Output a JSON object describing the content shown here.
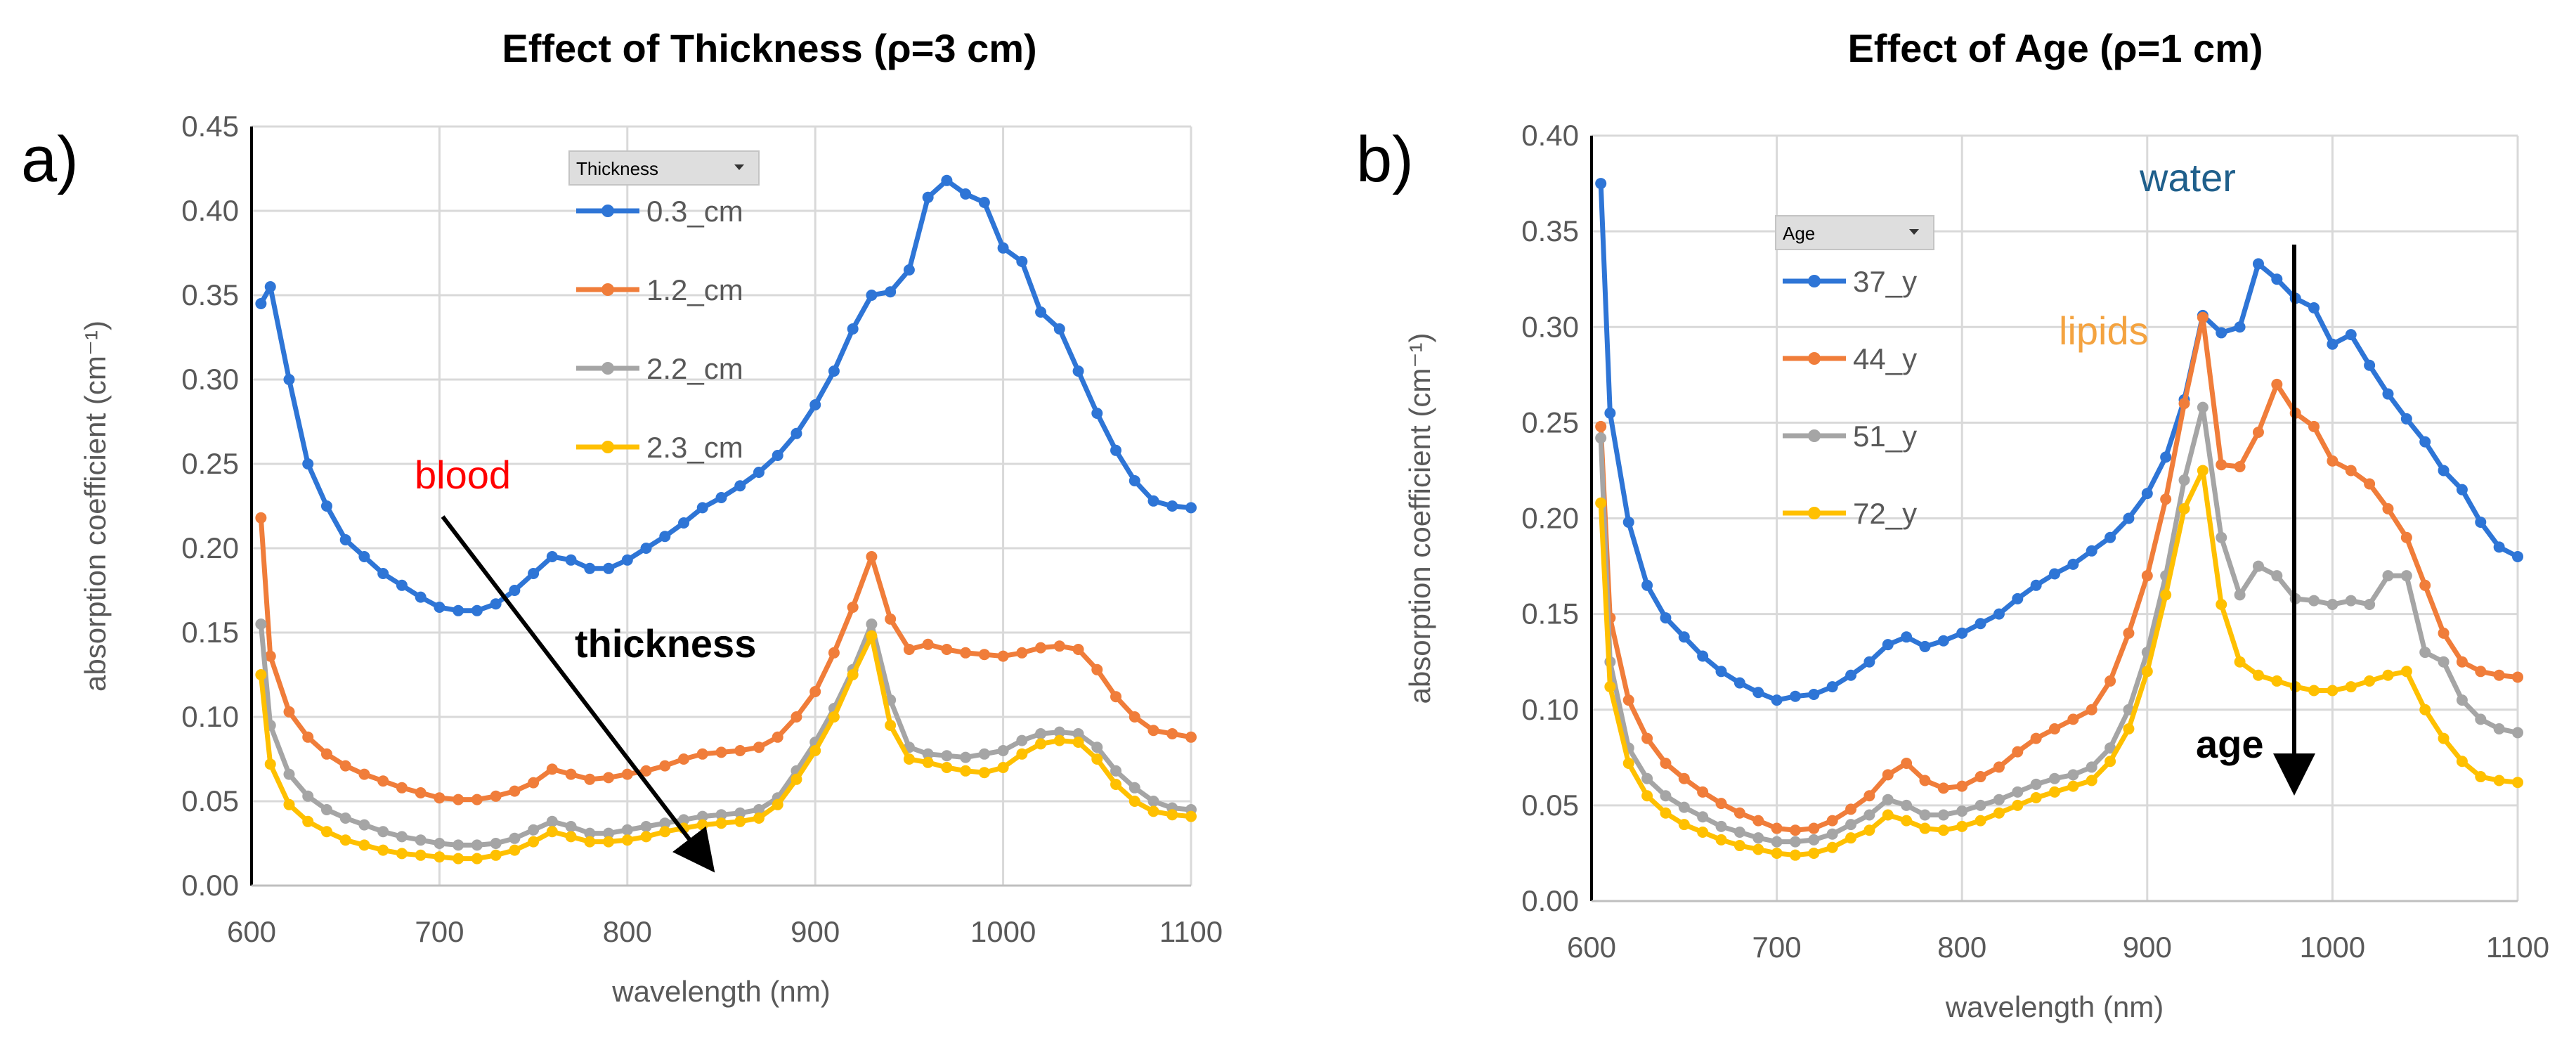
{
  "figure": {
    "panels": [
      {
        "label": "a)",
        "title": "Effect of Thickness (ρ=3 cm)",
        "legend_header": "Thickness"
      },
      {
        "label": "b)",
        "title": "Effect of Age (ρ=1 cm)",
        "legend_header": "Age"
      }
    ],
    "annotations": {
      "blood": "blood",
      "thickness": "thickness",
      "water": "water",
      "lipids": "lipids",
      "age": "age"
    },
    "colors": {
      "blue": "#2e75d6",
      "orange": "#f07d3a",
      "gray": "#a5a5a5",
      "yellow": "#ffc000",
      "blood": "#ff0000",
      "water": "#1f5f8b",
      "lipids": "#f4a340",
      "grid": "#d9d9d9",
      "axis": "#000000"
    }
  },
  "chart_data": [
    {
      "type": "line",
      "title": "Effect of Thickness (ρ=3 cm)",
      "xlabel": "wavelength (nm)",
      "ylabel": "absorption coefficient (cm⁻¹)",
      "xlim": [
        600,
        1100
      ],
      "ylim": [
        0,
        0.45
      ],
      "xticks": [
        600,
        700,
        800,
        900,
        1000,
        1100
      ],
      "yticks": [
        0,
        0.05,
        0.1,
        0.15,
        0.2,
        0.25,
        0.3,
        0.35,
        0.4,
        0.45
      ],
      "tick_labels_x": [
        "600",
        "700",
        "800",
        "900",
        "1000",
        "1100"
      ],
      "tick_labels_y": [
        "0.00",
        "0.05",
        "0.10",
        "0.15",
        "0.20",
        "0.25",
        "0.30",
        "0.35",
        "0.40",
        "0.45"
      ],
      "grid": true,
      "legend_position": "top-center",
      "x": [
        605,
        610,
        620,
        630,
        640,
        650,
        660,
        670,
        680,
        690,
        700,
        710,
        720,
        730,
        740,
        750,
        760,
        770,
        780,
        790,
        800,
        810,
        820,
        830,
        840,
        850,
        860,
        870,
        880,
        890,
        900,
        910,
        920,
        930,
        940,
        950,
        960,
        970,
        980,
        990,
        1000,
        1010,
        1020,
        1030,
        1040,
        1050,
        1060,
        1070,
        1080,
        1090,
        1100
      ],
      "series": [
        {
          "name": "0.3_cm",
          "color": "#2e75d6",
          "values": [
            0.345,
            0.355,
            0.3,
            0.25,
            0.225,
            0.205,
            0.195,
            0.185,
            0.178,
            0.171,
            0.165,
            0.163,
            0.163,
            0.167,
            0.175,
            0.185,
            0.195,
            0.193,
            0.188,
            0.188,
            0.193,
            0.2,
            0.207,
            0.215,
            0.224,
            0.23,
            0.237,
            0.245,
            0.255,
            0.268,
            0.285,
            0.305,
            0.33,
            0.35,
            0.352,
            0.365,
            0.408,
            0.418,
            0.41,
            0.405,
            0.378,
            0.37,
            0.34,
            0.33,
            0.305,
            0.28,
            0.258,
            0.24,
            0.228,
            0.225,
            0.224
          ]
        },
        {
          "name": "1.2_cm",
          "color": "#f07d3a",
          "values": [
            0.218,
            0.136,
            0.103,
            0.088,
            0.078,
            0.071,
            0.066,
            0.062,
            0.058,
            0.055,
            0.052,
            0.051,
            0.051,
            0.053,
            0.056,
            0.061,
            0.069,
            0.066,
            0.063,
            0.064,
            0.066,
            0.068,
            0.071,
            0.075,
            0.078,
            0.079,
            0.08,
            0.082,
            0.088,
            0.1,
            0.115,
            0.138,
            0.165,
            0.195,
            0.158,
            0.14,
            0.143,
            0.14,
            0.138,
            0.137,
            0.136,
            0.138,
            0.141,
            0.142,
            0.14,
            0.128,
            0.112,
            0.1,
            0.092,
            0.09,
            0.088
          ]
        },
        {
          "name": "2.2_cm",
          "color": "#a5a5a5",
          "values": [
            0.155,
            0.095,
            0.066,
            0.053,
            0.045,
            0.04,
            0.036,
            0.032,
            0.029,
            0.027,
            0.025,
            0.024,
            0.024,
            0.025,
            0.028,
            0.033,
            0.038,
            0.035,
            0.031,
            0.031,
            0.033,
            0.035,
            0.037,
            0.039,
            0.041,
            0.042,
            0.043,
            0.045,
            0.052,
            0.068,
            0.085,
            0.105,
            0.128,
            0.155,
            0.11,
            0.082,
            0.078,
            0.077,
            0.076,
            0.078,
            0.08,
            0.086,
            0.09,
            0.091,
            0.09,
            0.082,
            0.068,
            0.058,
            0.05,
            0.046,
            0.045
          ]
        },
        {
          "name": "2.3_cm",
          "color": "#ffc000",
          "values": [
            0.125,
            0.072,
            0.048,
            0.038,
            0.032,
            0.027,
            0.024,
            0.021,
            0.019,
            0.018,
            0.017,
            0.016,
            0.016,
            0.018,
            0.021,
            0.026,
            0.032,
            0.029,
            0.026,
            0.026,
            0.027,
            0.029,
            0.032,
            0.034,
            0.036,
            0.037,
            0.038,
            0.04,
            0.048,
            0.063,
            0.08,
            0.1,
            0.125,
            0.148,
            0.095,
            0.075,
            0.073,
            0.07,
            0.068,
            0.067,
            0.07,
            0.078,
            0.084,
            0.086,
            0.085,
            0.075,
            0.06,
            0.05,
            0.044,
            0.042,
            0.041
          ]
        }
      ]
    },
    {
      "type": "line",
      "title": "Effect of Age (ρ=1 cm)",
      "xlabel": "wavelength (nm)",
      "ylabel": "absorption coefficient (cm⁻¹)",
      "xlim": [
        600,
        1100
      ],
      "ylim": [
        0,
        0.4
      ],
      "xticks": [
        600,
        700,
        800,
        900,
        1000,
        1100
      ],
      "yticks": [
        0,
        0.05,
        0.1,
        0.15,
        0.2,
        0.25,
        0.3,
        0.35,
        0.4
      ],
      "tick_labels_x": [
        "600",
        "700",
        "800",
        "900",
        "1000",
        "1100"
      ],
      "tick_labels_y": [
        "0.00",
        "0.05",
        "0.10",
        "0.15",
        "0.20",
        "0.25",
        "0.30",
        "0.35",
        "0.40"
      ],
      "grid": true,
      "legend_position": "top-left",
      "x": [
        605,
        610,
        620,
        630,
        640,
        650,
        660,
        670,
        680,
        690,
        700,
        710,
        720,
        730,
        740,
        750,
        760,
        770,
        780,
        790,
        800,
        810,
        820,
        830,
        840,
        850,
        860,
        870,
        880,
        890,
        900,
        910,
        920,
        930,
        940,
        950,
        960,
        970,
        980,
        990,
        1000,
        1010,
        1020,
        1030,
        1040,
        1050,
        1060,
        1070,
        1080,
        1090,
        1100
      ],
      "series": [
        {
          "name": "37_y",
          "color": "#2e75d6",
          "values": [
            0.375,
            0.255,
            0.198,
            0.165,
            0.148,
            0.138,
            0.128,
            0.12,
            0.114,
            0.109,
            0.105,
            0.107,
            0.108,
            0.112,
            0.118,
            0.125,
            0.134,
            0.138,
            0.133,
            0.136,
            0.14,
            0.145,
            0.15,
            0.158,
            0.165,
            0.171,
            0.176,
            0.183,
            0.19,
            0.2,
            0.213,
            0.232,
            0.262,
            0.306,
            0.297,
            0.3,
            0.333,
            0.325,
            0.315,
            0.31,
            0.291,
            0.296,
            0.28,
            0.265,
            0.252,
            0.24,
            0.225,
            0.215,
            0.198,
            0.185,
            0.18
          ]
        },
        {
          "name": "44_y",
          "color": "#f07d3a",
          "values": [
            0.248,
            0.148,
            0.105,
            0.085,
            0.072,
            0.064,
            0.057,
            0.051,
            0.046,
            0.042,
            0.038,
            0.037,
            0.038,
            0.042,
            0.048,
            0.055,
            0.066,
            0.072,
            0.063,
            0.059,
            0.06,
            0.065,
            0.07,
            0.078,
            0.085,
            0.09,
            0.095,
            0.1,
            0.115,
            0.14,
            0.17,
            0.21,
            0.26,
            0.305,
            0.228,
            0.227,
            0.245,
            0.27,
            0.255,
            0.248,
            0.23,
            0.225,
            0.218,
            0.205,
            0.19,
            0.165,
            0.14,
            0.125,
            0.12,
            0.118,
            0.117
          ]
        },
        {
          "name": "51_y",
          "color": "#a5a5a5",
          "values": [
            0.242,
            0.125,
            0.08,
            0.064,
            0.055,
            0.049,
            0.044,
            0.039,
            0.036,
            0.033,
            0.031,
            0.031,
            0.032,
            0.035,
            0.04,
            0.045,
            0.053,
            0.05,
            0.045,
            0.045,
            0.047,
            0.05,
            0.053,
            0.057,
            0.061,
            0.064,
            0.066,
            0.07,
            0.08,
            0.1,
            0.13,
            0.17,
            0.22,
            0.258,
            0.19,
            0.16,
            0.175,
            0.17,
            0.158,
            0.157,
            0.155,
            0.157,
            0.155,
            0.17,
            0.17,
            0.13,
            0.125,
            0.105,
            0.095,
            0.09,
            0.088
          ]
        },
        {
          "name": "72_y",
          "color": "#ffc000",
          "values": [
            0.208,
            0.112,
            0.072,
            0.055,
            0.046,
            0.04,
            0.036,
            0.032,
            0.029,
            0.027,
            0.025,
            0.024,
            0.025,
            0.028,
            0.033,
            0.037,
            0.045,
            0.042,
            0.038,
            0.037,
            0.039,
            0.042,
            0.046,
            0.05,
            0.054,
            0.057,
            0.06,
            0.063,
            0.073,
            0.09,
            0.12,
            0.16,
            0.205,
            0.225,
            0.155,
            0.125,
            0.118,
            0.115,
            0.112,
            0.11,
            0.11,
            0.112,
            0.115,
            0.118,
            0.12,
            0.1,
            0.085,
            0.073,
            0.065,
            0.063,
            0.062
          ]
        }
      ]
    }
  ]
}
